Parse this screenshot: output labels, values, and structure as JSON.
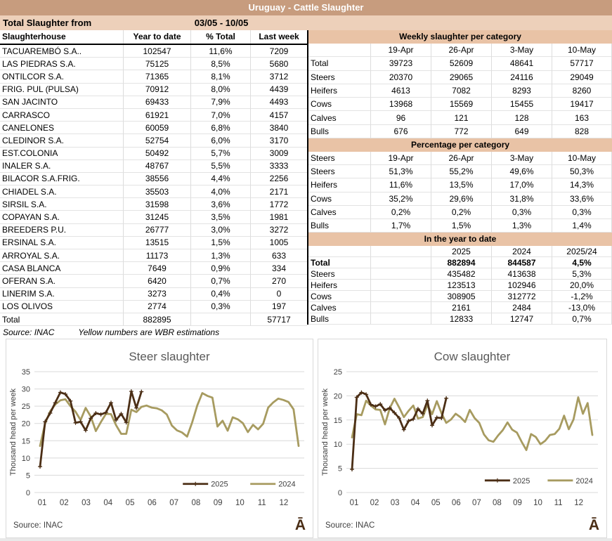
{
  "header": {
    "title": "Uruguay - Cattle Slaughter",
    "subtitle_label": "Total Slaughter from",
    "date_range": "03/05 - 10/05"
  },
  "colors": {
    "title_band": "#C79C7E",
    "subtitle_band": "#EDD0BA",
    "section_band": "#E9C3A6",
    "series_2025": "#4B2E15",
    "series_2024": "#A79B60",
    "grid": "#d9d9d9"
  },
  "left_table": {
    "columns": [
      "Slaughterhouse",
      "Year to date",
      "% Total",
      "Last week"
    ],
    "rows": [
      [
        "TACUAREMBÓ S.A..",
        "102547",
        "11,6%",
        "7209"
      ],
      [
        "LAS PIEDRAS S.A.",
        "75125",
        "8,5%",
        "5680"
      ],
      [
        "ONTILCOR S.A.",
        "71365",
        "8,1%",
        "3712"
      ],
      [
        "FRIG. PUL (PULSA)",
        "70912",
        "8,0%",
        "4439"
      ],
      [
        "SAN JACINTO",
        "69433",
        "7,9%",
        "4493"
      ],
      [
        "CARRASCO",
        "61921",
        "7,0%",
        "4157"
      ],
      [
        "CANELONES",
        "60059",
        "6,8%",
        "3840"
      ],
      [
        "CLEDINOR S.A.",
        "52754",
        "6,0%",
        "3170"
      ],
      [
        "EST.COLONIA",
        "50492",
        "5,7%",
        "3009"
      ],
      [
        "INALER S.A.",
        "48767",
        "5,5%",
        "3333"
      ],
      [
        "BILACOR S.A.FRIG.",
        "38556",
        "4,4%",
        "2256"
      ],
      [
        "CHIADEL S.A.",
        "35503",
        "4,0%",
        "2171"
      ],
      [
        "SIRSIL S.A.",
        "31598",
        "3,6%",
        "1772"
      ],
      [
        "COPAYAN S.A.",
        "31245",
        "3,5%",
        "1981"
      ],
      [
        "BREEDERS P.U.",
        "26777",
        "3,0%",
        "3272"
      ],
      [
        "ERSINAL S.A.",
        "13515",
        "1,5%",
        "1005"
      ],
      [
        "ARROYAL S.A.",
        "11173",
        "1,3%",
        "633"
      ],
      [
        "CASA BLANCA",
        "7649",
        "0,9%",
        "334"
      ],
      [
        "OFERAN S.A.",
        "6420",
        "0,7%",
        "270"
      ],
      [
        "LINERIM S.A.",
        "3273",
        "0,4%",
        "0"
      ],
      [
        "LOS OLIVOS",
        "2774",
        "0,3%",
        "197"
      ]
    ],
    "total_row": [
      "Total",
      "882895",
      "",
      "57717"
    ],
    "source": "Source: INAC",
    "note": "Yellow numbers are WBR estimations"
  },
  "weekly_table": {
    "title": "Weekly slaughter per category",
    "columns": [
      "",
      "19-Apr",
      "26-Apr",
      "3-May",
      "10-May"
    ],
    "rows": [
      [
        "Total",
        "39723",
        "52609",
        "48641",
        "57717"
      ],
      [
        "Steers",
        "20370",
        "29065",
        "24116",
        "29049"
      ],
      [
        "Heifers",
        "4613",
        "7082",
        "8293",
        "8260"
      ],
      [
        "Cows",
        "13968",
        "15569",
        "15455",
        "19417"
      ],
      [
        "Calves",
        "96",
        "121",
        "128",
        "163"
      ],
      [
        "Bulls",
        "676",
        "772",
        "649",
        "828"
      ]
    ]
  },
  "percentage_table": {
    "title": "Percentage per category",
    "columns": [
      "Steers",
      "19-Apr",
      "26-Apr",
      "3-May",
      "10-May"
    ],
    "rows": [
      [
        "Steers",
        "51,3%",
        "55,2%",
        "49,6%",
        "50,3%"
      ],
      [
        "Heifers",
        "11,6%",
        "13,5%",
        "17,0%",
        "14,3%"
      ],
      [
        "Cows",
        "35,2%",
        "29,6%",
        "31,8%",
        "33,6%"
      ],
      [
        "Calves",
        "0,2%",
        "0,2%",
        "0,3%",
        "0,3%"
      ],
      [
        "Bulls",
        "1,7%",
        "1,5%",
        "1,3%",
        "1,4%"
      ]
    ]
  },
  "ytd_table": {
    "title": "In the year to date",
    "columns": [
      "",
      "",
      "2025",
      "2024",
      "2025/24"
    ],
    "bold_rows": [
      0
    ],
    "rows": [
      [
        "Total",
        "",
        "882894",
        "844587",
        "4,5%"
      ],
      [
        "Steers",
        "",
        "435482",
        "413638",
        "5,3%"
      ],
      [
        "Heifers",
        "",
        "123513",
        "102946",
        "20,0%"
      ],
      [
        "Cows",
        "",
        "308905",
        "312772",
        "-1,2%"
      ],
      [
        "Calves",
        "",
        "2161",
        "2484",
        "-13,0%"
      ],
      [
        "Bulls",
        "",
        "12833",
        "12747",
        "0,7%"
      ]
    ]
  },
  "chart_data": [
    {
      "type": "line",
      "title": "Steer slaughter",
      "ylabel": "Thousand head per week",
      "ylim": [
        0,
        35
      ],
      "ytick_step": 5,
      "x_tick_labels": [
        "01",
        "02",
        "03",
        "04",
        "05",
        "06",
        "07",
        "08",
        "09",
        "10",
        "11",
        "12"
      ],
      "x_unit": "week of year",
      "grid": true,
      "legend_position": "inside-bottom-right",
      "source": "Source: INAC",
      "mark": "Ā",
      "series": [
        {
          "name": "2025",
          "color": "#4B2E15",
          "marker": "plus",
          "values": [
            7.5,
            20.5,
            23,
            26,
            29,
            28.5,
            26.5,
            20.2,
            20.5,
            18,
            21.5,
            23,
            22.6,
            23.2,
            26,
            21,
            22.8,
            20.3,
            29.3,
            24.5,
            29.2
          ]
        },
        {
          "name": "2024",
          "color": "#A79B60",
          "marker": "none",
          "values": [
            13.5,
            20,
            23.5,
            25.5,
            26.7,
            27,
            25,
            23.4,
            21,
            24.5,
            22,
            17.8,
            20.4,
            22.8,
            22.7,
            19.5,
            17,
            17,
            24,
            23.3,
            24.8,
            25.2,
            24.6,
            24.4,
            23.8,
            22.6,
            19.4,
            18,
            17.4,
            16.2,
            20.3,
            25.2,
            28.8,
            28,
            27.5,
            19.1,
            20.8,
            17.9,
            21.8,
            21.2,
            20.1,
            17.5,
            19.6,
            18.3,
            19.9,
            24.6,
            26.1,
            27.2,
            26.8,
            26.2,
            24.1,
            13.5
          ]
        }
      ]
    },
    {
      "type": "line",
      "title": "Cow slaughter",
      "ylabel": "Thousand head per week",
      "ylim": [
        0,
        25
      ],
      "ytick_step": 5,
      "x_tick_labels": [
        "01",
        "02",
        "03",
        "04",
        "05",
        "06",
        "07",
        "08",
        "09",
        "10",
        "11",
        "12"
      ],
      "x_unit": "week of year",
      "grid": true,
      "legend_position": "inside-bottom-right",
      "source": "Source: INAC",
      "mark": "Ā",
      "series": [
        {
          "name": "2025",
          "color": "#4B2E15",
          "marker": "plus",
          "values": [
            4.8,
            19.7,
            20.7,
            20.3,
            18.2,
            17.8,
            18.3,
            17,
            17.5,
            16.5,
            15.4,
            13,
            14.8,
            15.2,
            17.3,
            16.3,
            19,
            13.9,
            15.5,
            15.4,
            19.5
          ]
        },
        {
          "name": "2024",
          "color": "#A79B60",
          "marker": "none",
          "values": [
            11.4,
            16.2,
            16,
            19,
            18,
            17.2,
            17.1,
            14.1,
            17.4,
            19.4,
            17.6,
            15.6,
            16.9,
            18,
            15.3,
            15.6,
            18.1,
            16.2,
            18.9,
            16.4,
            14.4,
            15.1,
            16.3,
            15.6,
            14.6,
            17.1,
            15.4,
            14.4,
            12,
            10.8,
            10.5,
            11.8,
            12.9,
            14.5,
            13,
            12.4,
            10.5,
            8.8,
            12.1,
            11.5,
            10,
            10.7,
            11.9,
            12.1,
            13.2,
            15.9,
            13.1,
            15.1,
            19.7,
            16.3,
            18.5,
            11.9
          ]
        }
      ]
    }
  ]
}
